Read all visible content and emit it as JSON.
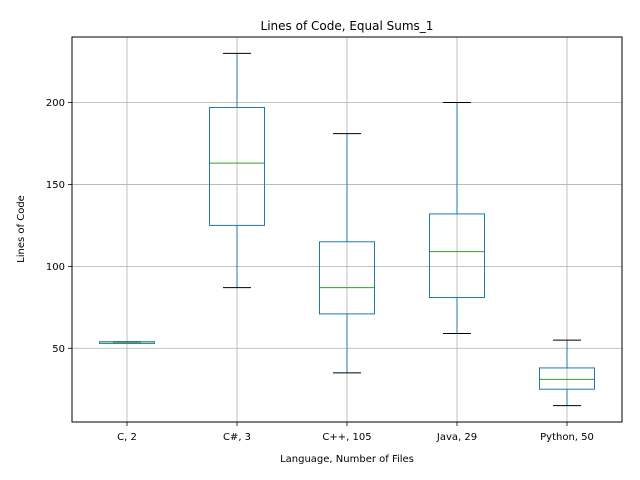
{
  "chart_data": {
    "type": "boxplot",
    "title": "Lines of Code, Equal Sums_1",
    "xlabel": "Language, Number of Files",
    "ylabel": "Lines of Code",
    "ylim": [
      5,
      240
    ],
    "yticks": [
      50,
      100,
      150,
      200
    ],
    "grid": true,
    "colors": {
      "box": "#1f77b4",
      "median": "#2ca02c",
      "cap": "#000000",
      "grid": "#b0b0b0"
    },
    "categories": [
      "C, 2",
      "C#, 3",
      "C++, 105",
      "Java, 29",
      "Python, 50"
    ],
    "boxes": [
      {
        "whislo": 53,
        "q1": 53,
        "med": 53,
        "q3": 54,
        "whishi": 54
      },
      {
        "whislo": 87,
        "q1": 125,
        "med": 163,
        "q3": 197,
        "whishi": 230
      },
      {
        "whislo": 35,
        "q1": 71,
        "med": 87,
        "q3": 115,
        "whishi": 181
      },
      {
        "whislo": 59,
        "q1": 81,
        "med": 109,
        "q3": 132,
        "whishi": 200
      },
      {
        "whislo": 15,
        "q1": 25,
        "med": 31,
        "q3": 38,
        "whishi": 55
      }
    ]
  }
}
